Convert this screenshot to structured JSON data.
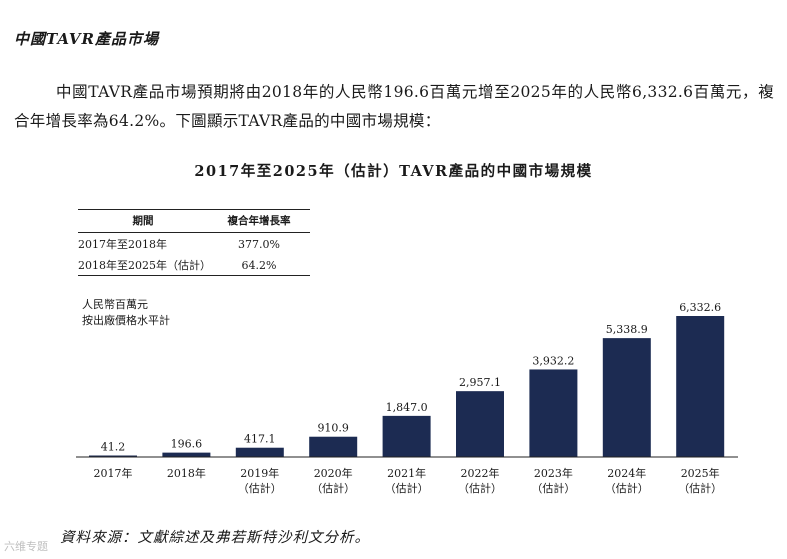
{
  "section_heading": "中國TAVR產品市場",
  "paragraph": "中國TAVR產品市場預期將由2018年的人民幣196.6百萬元增至2025年的人民幣6,332.6百萬元，複合年增長率為64.2%。下圖顯示TAVR產品的中國市場規模：",
  "cagr_table": {
    "headers": [
      "期間",
      "複合年增長率"
    ],
    "rows": [
      {
        "period": "2017年至2018年",
        "cagr": "377.0%"
      },
      {
        "period": "2018年至2025年（估計）",
        "cagr": "64.2%"
      }
    ]
  },
  "unit_label_line1": "人民幣百萬元",
  "unit_label_line2": "按出廠價格水平計",
  "source_note": "資料來源：文獻綜述及弗若斯特沙利文分析。",
  "watermark": "六维专题",
  "colors": {
    "bar": "#1c2b52",
    "axis": "#222222"
  },
  "chart_data": {
    "type": "bar",
    "title": "2017年至2025年（估計）TAVR產品的中國市場規模",
    "categories": [
      "2017年",
      "2018年",
      "2019年",
      "2020年",
      "2021年",
      "2022年",
      "2023年",
      "2024年",
      "2025年"
    ],
    "category_sublabels": [
      "",
      "",
      "（估計）",
      "（估計）",
      "（估計）",
      "（估計）",
      "（估計）",
      "（估計）",
      "（估計）"
    ],
    "values": [
      41.2,
      196.6,
      417.1,
      910.9,
      1847.0,
      2957.1,
      3932.2,
      5338.9,
      6332.6
    ],
    "value_labels": [
      "41.2",
      "196.6",
      "417.1",
      "910.9",
      "1,847.0",
      "2,957.1",
      "3,932.2",
      "5,338.9",
      "6,332.6"
    ],
    "xlabel": "",
    "ylabel": "人民幣百萬元",
    "ylim": [
      0,
      6332.6
    ],
    "grid": false,
    "legend": "none"
  }
}
